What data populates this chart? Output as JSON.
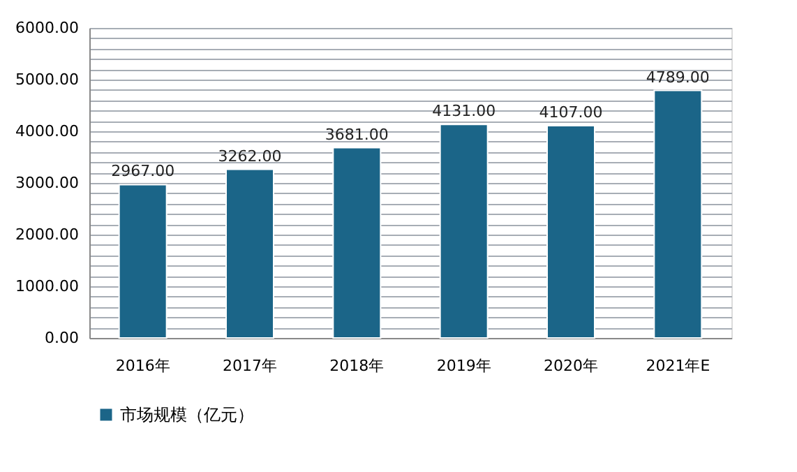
{
  "chart_data": {
    "type": "bar",
    "categories": [
      "2016年",
      "2017年",
      "2018年",
      "2019年",
      "2020年",
      "2021年E"
    ],
    "series": [
      {
        "name": "市场规模（亿元）",
        "color": "#1b6588",
        "values": [
          2967,
          3262,
          3681,
          4131,
          4107,
          4789
        ]
      }
    ],
    "value_labels": [
      "2967.00",
      "3262.00",
      "3681.00",
      "4131.00",
      "4107.00",
      "4789.00"
    ],
    "ylim": [
      0,
      6000
    ],
    "yticks": [
      {
        "value": 0,
        "label": "0.00"
      },
      {
        "value": 200,
        "label": null
      },
      {
        "value": 400,
        "label": null
      },
      {
        "value": 600,
        "label": null
      },
      {
        "value": 800,
        "label": null
      },
      {
        "value": 1000,
        "label": "1000.00"
      },
      {
        "value": 1200,
        "label": null
      },
      {
        "value": 1400,
        "label": null
      },
      {
        "value": 1600,
        "label": null
      },
      {
        "value": 1800,
        "label": null
      },
      {
        "value": 2000,
        "label": "2000.00"
      },
      {
        "value": 2200,
        "label": null
      },
      {
        "value": 2400,
        "label": null
      },
      {
        "value": 2600,
        "label": null
      },
      {
        "value": 2800,
        "label": null
      },
      {
        "value": 3000,
        "label": "3000.00"
      },
      {
        "value": 3200,
        "label": null
      },
      {
        "value": 3400,
        "label": null
      },
      {
        "value": 3600,
        "label": null
      },
      {
        "value": 3800,
        "label": null
      },
      {
        "value": 4000,
        "label": "4000.00"
      },
      {
        "value": 4200,
        "label": null
      },
      {
        "value": 4400,
        "label": null
      },
      {
        "value": 4600,
        "label": null
      },
      {
        "value": 4800,
        "label": null
      },
      {
        "value": 5000,
        "label": "5000.00"
      },
      {
        "value": 5200,
        "label": null
      },
      {
        "value": 5400,
        "label": null
      },
      {
        "value": 5600,
        "label": null
      },
      {
        "value": 5800,
        "label": null
      },
      {
        "value": 6000,
        "label": "6000.00"
      }
    ],
    "grid": "y",
    "legend": "bottom"
  }
}
